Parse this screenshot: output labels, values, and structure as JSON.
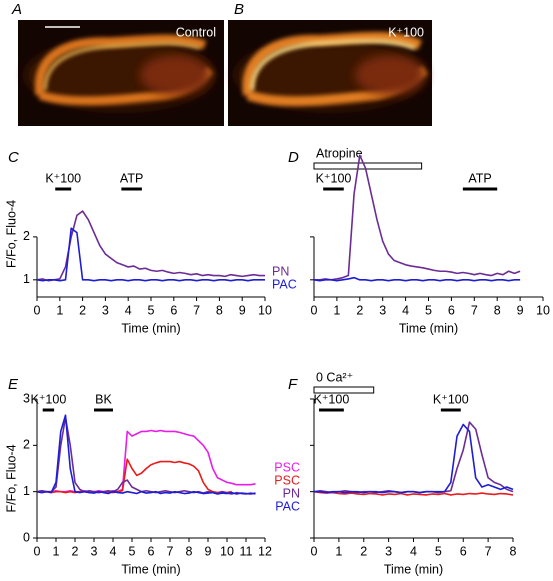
{
  "images": [
    {
      "letter": "A",
      "label": "Control"
    },
    {
      "letter": "B",
      "label": "K⁺100"
    }
  ],
  "chart_data": [
    {
      "type": "line",
      "panel": "C",
      "ylabel": "F/Fo, Fluo-4",
      "xlabel": "Time (min)",
      "xlim": [
        0,
        10
      ],
      "xticks": [
        0,
        1,
        2,
        3,
        4,
        5,
        6,
        7,
        8,
        9,
        10
      ],
      "ylim": [
        0.6,
        4.0
      ],
      "yticks": [
        1,
        2
      ],
      "show_ytick_labels": true,
      "legend": "right",
      "annotations": [
        {
          "text": "K⁺100",
          "start": 0.8,
          "end": 1.5,
          "style": "filled"
        },
        {
          "text": "ATP",
          "start": 3.7,
          "end": 4.6,
          "style": "filled"
        }
      ],
      "x": [
        0,
        0.25,
        0.5,
        0.75,
        1,
        1.25,
        1.5,
        1.75,
        2,
        2.25,
        2.5,
        2.75,
        3,
        3.25,
        3.5,
        3.75,
        4,
        4.25,
        4.5,
        4.75,
        5,
        5.25,
        5.5,
        5.75,
        6,
        6.25,
        6.5,
        6.75,
        7,
        7.25,
        7.5,
        7.75,
        8,
        8.25,
        8.5,
        8.75,
        9,
        9.25,
        9.5,
        9.75,
        10
      ],
      "series": [
        {
          "name": "PN",
          "color": "#6b2c95",
          "values": [
            1.0,
            1.02,
            0.98,
            1.0,
            1.02,
            1.3,
            2.0,
            2.5,
            2.6,
            2.4,
            2.1,
            1.8,
            1.6,
            1.5,
            1.4,
            1.35,
            1.3,
            1.32,
            1.25,
            1.27,
            1.22,
            1.2,
            1.22,
            1.18,
            1.15,
            1.17,
            1.15,
            1.12,
            1.14,
            1.1,
            1.12,
            1.1,
            1.1,
            1.08,
            1.12,
            1.1,
            1.08,
            1.1,
            1.12,
            1.1,
            1.1
          ]
        },
        {
          "name": "PAC",
          "color": "#1d1dd6",
          "values": [
            1.0,
            0.98,
            1.0,
            1.0,
            0.98,
            1.0,
            2.2,
            2.1,
            1.0,
            1.0,
            0.98,
            1.0,
            1.0,
            0.98,
            1.0,
            1.0,
            0.98,
            1.0,
            1.0,
            0.98,
            1.0,
            1.0,
            0.98,
            1.0,
            1.0,
            0.98,
            1.0,
            1.0,
            0.98,
            1.0,
            1.0,
            0.98,
            1.0,
            1.0,
            0.98,
            1.0,
            1.0,
            0.98,
            1.0,
            1.0,
            1.0
          ]
        }
      ]
    },
    {
      "type": "line",
      "panel": "D",
      "xlabel": "Time (min)",
      "xlim": [
        0,
        10
      ],
      "xticks": [
        0,
        1,
        2,
        3,
        4,
        5,
        6,
        7,
        8,
        9,
        10
      ],
      "ylim": [
        0.6,
        4.0
      ],
      "yticks": [
        1,
        2
      ],
      "show_ytick_labels": false,
      "annotations": [
        {
          "text": "Atropine",
          "start": 0,
          "end": 4.7,
          "style": "open"
        },
        {
          "text": "K⁺100",
          "start": 0.4,
          "end": 1.3,
          "style": "filled"
        },
        {
          "text": "ATP",
          "start": 6.5,
          "end": 8.0,
          "style": "filled"
        }
      ],
      "x": [
        0,
        0.25,
        0.5,
        0.75,
        1,
        1.25,
        1.5,
        1.75,
        2,
        2.25,
        2.5,
        2.75,
        3,
        3.25,
        3.5,
        3.75,
        4,
        4.25,
        4.5,
        4.75,
        5,
        5.25,
        5.5,
        5.75,
        6,
        6.25,
        6.5,
        6.75,
        7,
        7.25,
        7.5,
        7.75,
        8,
        8.25,
        8.5,
        8.75,
        9
      ],
      "series": [
        {
          "color": "#6b2c95",
          "values": [
            1.0,
            1.0,
            1.02,
            1.0,
            1.02,
            1.05,
            1.1,
            3.0,
            3.9,
            3.6,
            3.0,
            2.4,
            1.9,
            1.6,
            1.45,
            1.4,
            1.35,
            1.32,
            1.3,
            1.28,
            1.25,
            1.22,
            1.2,
            1.2,
            1.18,
            1.15,
            1.17,
            1.15,
            1.12,
            1.15,
            1.12,
            1.1,
            1.15,
            1.12,
            1.2,
            1.15,
            1.2
          ]
        },
        {
          "color": "#1d1dd6",
          "values": [
            1.0,
            0.98,
            1.0,
            1.0,
            0.98,
            1.0,
            1.02,
            1.05,
            1.0,
            1.0,
            0.98,
            1.0,
            1.0,
            0.98,
            1.0,
            1.0,
            0.98,
            1.0,
            1.0,
            0.98,
            1.0,
            1.0,
            0.98,
            1.0,
            1.0,
            0.98,
            1.0,
            1.0,
            0.98,
            1.0,
            1.0,
            0.98,
            1.0,
            1.0,
            0.98,
            1.0,
            1.0
          ]
        }
      ]
    },
    {
      "type": "line",
      "panel": "E",
      "ylabel": "F/Fo, Fluo-4",
      "xlabel": "Time (min)",
      "xlim": [
        0,
        12
      ],
      "xticks": [
        0,
        1,
        2,
        3,
        4,
        5,
        6,
        7,
        8,
        9,
        10,
        11,
        12
      ],
      "ylim": [
        0,
        3
      ],
      "yticks": [
        0,
        1,
        2,
        3
      ],
      "show_ytick_labels": true,
      "legend": "right",
      "annotations": [
        {
          "text": "K⁺100",
          "start": 0.3,
          "end": 0.9,
          "style": "filled"
        },
        {
          "text": "BK",
          "start": 3.0,
          "end": 4.0,
          "style": "filled"
        }
      ],
      "x": [
        0,
        0.25,
        0.5,
        0.75,
        1,
        1.25,
        1.5,
        1.75,
        2,
        2.25,
        2.5,
        2.75,
        3,
        3.25,
        3.5,
        3.75,
        4,
        4.25,
        4.5,
        4.75,
        5,
        5.25,
        5.5,
        5.75,
        6,
        6.25,
        6.5,
        6.75,
        7,
        7.25,
        7.5,
        7.75,
        8,
        8.25,
        8.5,
        8.75,
        9,
        9.25,
        9.5,
        9.75,
        10,
        10.25,
        10.5,
        10.75,
        11,
        11.25,
        11.5
      ],
      "series": [
        {
          "name": "PSC",
          "color": "#e61ee6",
          "values": [
            1.0,
            1.02,
            1.0,
            1.0,
            1.02,
            1.0,
            1.0,
            1.02,
            1.0,
            1.0,
            1.02,
            1.0,
            1.0,
            1.02,
            1.0,
            1.0,
            1.02,
            1.0,
            1.05,
            2.3,
            2.2,
            2.25,
            2.3,
            2.3,
            2.32,
            2.3,
            2.32,
            2.3,
            2.3,
            2.3,
            2.28,
            2.25,
            2.22,
            2.2,
            2.1,
            2.0,
            1.85,
            1.5,
            1.3,
            1.25,
            1.2,
            1.18,
            1.15,
            1.15,
            1.15,
            1.15,
            1.17
          ]
        },
        {
          "name": "PSC",
          "color": "#e81c1c",
          "values": [
            1.0,
            0.98,
            1.0,
            0.98,
            1.0,
            1.0,
            0.98,
            1.0,
            0.98,
            1.0,
            1.0,
            0.98,
            1.0,
            0.98,
            1.0,
            1.0,
            0.98,
            1.0,
            1.02,
            1.7,
            1.5,
            1.35,
            1.4,
            1.5,
            1.58,
            1.62,
            1.65,
            1.65,
            1.65,
            1.63,
            1.65,
            1.62,
            1.6,
            1.55,
            1.45,
            1.2,
            1.05,
            1.0,
            0.98,
            1.0,
            0.98,
            1.0,
            null,
            null,
            null,
            null,
            null
          ]
        },
        {
          "name": "PN",
          "color": "#6b2c95",
          "values": [
            1.0,
            1.02,
            1.0,
            1.0,
            1.1,
            2.0,
            2.6,
            2.0,
            1.2,
            1.05,
            1.0,
            1.02,
            1.0,
            0.98,
            1.0,
            1.02,
            1.0,
            1.05,
            1.2,
            1.25,
            1.1,
            1.05,
            1.0,
            1.02,
            1.0,
            0.98,
            1.0,
            1.02,
            1.0,
            0.98,
            1.0,
            1.02,
            1.0,
            0.98,
            1.0,
            0.97,
            1.0,
            0.98,
            0.96,
            1.0,
            0.97,
            0.95,
            0.98,
            0.96,
            0.95,
            0.97,
            0.95
          ]
        },
        {
          "name": "PAC",
          "color": "#1d1dd6",
          "values": [
            1.0,
            0.98,
            1.0,
            0.98,
            1.2,
            2.3,
            2.65,
            1.5,
            1.0,
            0.98,
            1.0,
            0.98,
            0.97,
            1.0,
            0.98,
            0.96,
            1.0,
            0.98,
            0.97,
            1.0,
            0.98,
            0.96,
            1.0,
            0.97,
            0.98,
            1.0,
            0.96,
            0.98,
            0.97,
            1.0,
            0.98,
            0.96,
            0.97,
            1.0,
            0.98,
            0.96,
            0.97,
            0.98,
            0.95,
            0.97,
            0.96,
            0.98,
            0.95,
            0.97,
            0.96,
            0.95,
            0.97
          ]
        }
      ]
    },
    {
      "type": "line",
      "panel": "F",
      "xlabel": "Time (min)",
      "xlim": [
        0,
        8
      ],
      "xticks": [
        0,
        1,
        2,
        3,
        4,
        5,
        6,
        7,
        8
      ],
      "ylim": [
        0,
        3
      ],
      "yticks": [
        0,
        1,
        2,
        3
      ],
      "show_ytick_labels": false,
      "annotations": [
        {
          "text": "0 Ca²⁺",
          "start": 0,
          "end": 2.4,
          "style": "open"
        },
        {
          "text": "K⁺100",
          "start": 0.2,
          "end": 1.2,
          "style": "filled"
        },
        {
          "text": "K⁺100",
          "start": 5.1,
          "end": 5.9,
          "style": "filled"
        }
      ],
      "x": [
        0,
        0.25,
        0.5,
        0.75,
        1,
        1.25,
        1.5,
        1.75,
        2,
        2.25,
        2.5,
        2.75,
        3,
        3.25,
        3.5,
        3.75,
        4,
        4.25,
        4.5,
        4.75,
        5,
        5.25,
        5.5,
        5.75,
        6,
        6.25,
        6.5,
        6.75,
        7,
        7.25,
        7.5,
        7.75,
        8
      ],
      "series": [
        {
          "color": "#e81c1c",
          "values": [
            1.0,
            0.98,
            0.97,
            0.98,
            0.96,
            0.95,
            0.97,
            0.95,
            0.94,
            0.96,
            0.95,
            0.93,
            0.95,
            0.94,
            0.96,
            0.93,
            0.95,
            0.94,
            0.93,
            0.95,
            0.94,
            0.96,
            0.93,
            0.95,
            0.94,
            0.96,
            0.95,
            0.97,
            0.95,
            0.94,
            0.96,
            0.95,
            0.93
          ]
        },
        {
          "color": "#6b2c95",
          "values": [
            1.0,
            1.02,
            1.0,
            0.98,
            1.0,
            1.02,
            1.0,
            0.98,
            1.0,
            1.0,
            0.98,
            1.0,
            1.02,
            1.0,
            0.98,
            1.0,
            1.0,
            0.98,
            1.0,
            1.0,
            0.98,
            1.0,
            1.02,
            1.5,
            1.9,
            2.5,
            2.35,
            1.8,
            1.3,
            1.2,
            1.15,
            1.05,
            1.0
          ]
        },
        {
          "color": "#1d1dd6",
          "values": [
            1.0,
            1.0,
            0.98,
            1.0,
            1.0,
            0.98,
            1.0,
            1.0,
            0.98,
            1.0,
            1.0,
            0.98,
            1.0,
            1.0,
            0.98,
            1.0,
            1.0,
            0.98,
            1.0,
            1.0,
            1.0,
            1.0,
            1.2,
            2.2,
            2.45,
            2.3,
            1.3,
            1.1,
            1.15,
            1.1,
            1.05,
            1.1,
            1.05
          ]
        }
      ]
    }
  ]
}
